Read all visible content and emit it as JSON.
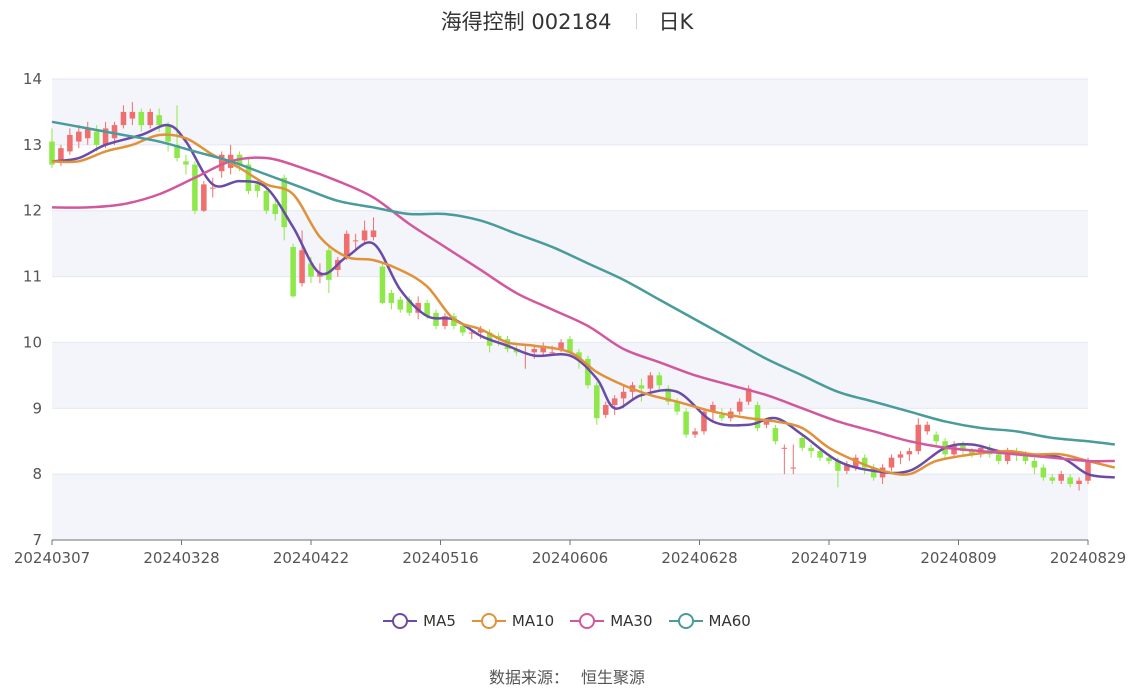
{
  "header": {
    "title": "海得控制 002184",
    "period": "日K"
  },
  "source": {
    "label": "数据来源：",
    "value": "恒生聚源"
  },
  "colors": {
    "up": "#ef6f6f",
    "down": "#8ee84a",
    "MA5": "#6a4ba8",
    "MA10": "#e0923a",
    "MA30": "#d2589e",
    "MA60": "#4a9b9b",
    "grid": "#e3e7f0",
    "band": "#f3f5fa"
  },
  "chart_data": {
    "type": "candlestick",
    "ylim": [
      7,
      14
    ],
    "yticks": [
      7,
      8,
      9,
      10,
      11,
      12,
      13,
      14
    ],
    "x_tick_labels": [
      "20240307",
      "20240328",
      "20240422",
      "20240516",
      "20240606",
      "20240628",
      "20240719",
      "20240809",
      "20240829"
    ],
    "legend_position": "bottom",
    "candles": [
      [
        13.05,
        12.7,
        13.25,
        12.65
      ],
      [
        12.75,
        12.95,
        13.0,
        12.68
      ],
      [
        12.9,
        13.15,
        13.25,
        12.85
      ],
      [
        13.05,
        13.2,
        13.3,
        12.95
      ],
      [
        13.1,
        13.25,
        13.35,
        13.0
      ],
      [
        13.2,
        13.0,
        13.3,
        12.9
      ],
      [
        13.0,
        13.25,
        13.35,
        12.95
      ],
      [
        13.1,
        13.3,
        13.35,
        13.0
      ],
      [
        13.3,
        13.5,
        13.6,
        13.25
      ],
      [
        13.4,
        13.5,
        13.65,
        13.3
      ],
      [
        13.5,
        13.3,
        13.55,
        13.2
      ],
      [
        13.3,
        13.5,
        13.55,
        13.25
      ],
      [
        13.45,
        13.3,
        13.55,
        13.2
      ],
      [
        13.3,
        13.05,
        13.35,
        12.9
      ],
      [
        13.0,
        12.8,
        13.6,
        12.75
      ],
      [
        12.75,
        12.7,
        12.85,
        12.55
      ],
      [
        12.7,
        12.0,
        12.75,
        11.95
      ],
      [
        12.0,
        12.4,
        12.45,
        11.98
      ],
      [
        12.35,
        12.35,
        12.5,
        12.2
      ],
      [
        12.6,
        12.85,
        12.9,
        12.5
      ],
      [
        12.65,
        12.85,
        13.0,
        12.55
      ],
      [
        12.85,
        12.7,
        12.9,
        12.6
      ],
      [
        12.7,
        12.3,
        12.8,
        12.25
      ],
      [
        12.4,
        12.3,
        12.5,
        12.2
      ],
      [
        12.3,
        12.0,
        12.35,
        11.95
      ],
      [
        12.1,
        11.95,
        12.2,
        11.85
      ],
      [
        12.5,
        11.75,
        12.55,
        11.55
      ],
      [
        11.45,
        10.7,
        11.5,
        10.68
      ],
      [
        10.9,
        11.4,
        11.7,
        10.85
      ],
      [
        11.2,
        11.0,
        11.3,
        10.9
      ],
      [
        11.0,
        11.05,
        11.2,
        10.9
      ],
      [
        11.4,
        10.95,
        11.45,
        10.75
      ],
      [
        11.1,
        11.25,
        11.3,
        11.0
      ],
      [
        11.3,
        11.65,
        11.7,
        11.25
      ],
      [
        11.55,
        11.55,
        11.65,
        11.4
      ],
      [
        11.55,
        11.7,
        11.85,
        11.5
      ],
      [
        11.6,
        11.7,
        11.9,
        11.55
      ],
      [
        11.15,
        10.6,
        11.2,
        10.58
      ],
      [
        10.75,
        10.6,
        10.8,
        10.5
      ],
      [
        10.65,
        10.5,
        10.7,
        10.45
      ],
      [
        10.65,
        10.45,
        10.7,
        10.4
      ],
      [
        10.45,
        10.6,
        10.7,
        10.35
      ],
      [
        10.6,
        10.4,
        10.65,
        10.35
      ],
      [
        10.45,
        10.25,
        10.5,
        10.2
      ],
      [
        10.25,
        10.4,
        10.45,
        10.2
      ],
      [
        10.4,
        10.25,
        10.45,
        10.2
      ],
      [
        10.25,
        10.15,
        10.3,
        10.1
      ],
      [
        10.15,
        10.15,
        10.2,
        10.05
      ],
      [
        10.15,
        10.2,
        10.25,
        10.05
      ],
      [
        10.15,
        9.95,
        10.2,
        9.85
      ],
      [
        10.1,
        10.05,
        10.15,
        9.95
      ],
      [
        10.05,
        9.9,
        10.1,
        9.85
      ],
      [
        9.9,
        9.85,
        9.95,
        9.8
      ],
      [
        9.85,
        9.85,
        9.95,
        9.6
      ],
      [
        9.85,
        9.9,
        9.95,
        9.75
      ],
      [
        9.85,
        9.95,
        10.0,
        9.8
      ],
      [
        9.85,
        9.85,
        9.95,
        9.8
      ],
      [
        9.9,
        10.0,
        10.05,
        9.85
      ],
      [
        10.05,
        9.85,
        10.1,
        9.8
      ],
      [
        9.85,
        9.75,
        9.9,
        9.6
      ],
      [
        9.75,
        9.35,
        9.8,
        9.3
      ],
      [
        9.35,
        8.85,
        9.4,
        8.75
      ],
      [
        8.9,
        9.05,
        9.1,
        8.85
      ],
      [
        9.05,
        9.15,
        9.2,
        8.9
      ],
      [
        9.15,
        9.25,
        9.35,
        9.0
      ],
      [
        9.25,
        9.35,
        9.4,
        9.15
      ],
      [
        9.35,
        9.3,
        9.45,
        9.1
      ],
      [
        9.3,
        9.5,
        9.55,
        9.2
      ],
      [
        9.5,
        9.35,
        9.55,
        9.25
      ],
      [
        9.3,
        9.1,
        9.35,
        9.05
      ],
      [
        9.1,
        8.95,
        9.15,
        8.9
      ],
      [
        8.95,
        8.6,
        9.0,
        8.55
      ],
      [
        8.6,
        8.65,
        8.7,
        8.55
      ],
      [
        8.65,
        8.95,
        9.0,
        8.6
      ],
      [
        8.95,
        9.05,
        9.1,
        8.8
      ],
      [
        8.9,
        8.85,
        9.0,
        8.8
      ],
      [
        8.85,
        8.95,
        9.0,
        8.8
      ],
      [
        8.95,
        9.1,
        9.15,
        8.9
      ],
      [
        9.1,
        9.3,
        9.35,
        9.05
      ],
      [
        9.05,
        8.7,
        9.1,
        8.65
      ],
      [
        8.75,
        8.8,
        8.85,
        8.7
      ],
      [
        8.7,
        8.5,
        8.75,
        8.45
      ],
      [
        8.4,
        8.4,
        8.45,
        8.0
      ],
      [
        8.1,
        8.1,
        8.45,
        8.0
      ],
      [
        8.55,
        8.4,
        8.6,
        8.35
      ],
      [
        8.4,
        8.35,
        8.45,
        8.25
      ],
      [
        8.35,
        8.25,
        8.4,
        8.2
      ],
      [
        8.25,
        8.2,
        8.3,
        8.15
      ],
      [
        8.2,
        8.05,
        8.25,
        7.8
      ],
      [
        8.05,
        8.15,
        8.2,
        8.0
      ],
      [
        8.1,
        8.25,
        8.3,
        8.05
      ],
      [
        8.25,
        8.1,
        8.3,
        8.0
      ],
      [
        8.1,
        7.95,
        8.15,
        7.9
      ],
      [
        7.95,
        8.1,
        8.15,
        7.85
      ],
      [
        8.1,
        8.25,
        8.3,
        8.05
      ],
      [
        8.25,
        8.3,
        8.35,
        8.15
      ],
      [
        8.3,
        8.35,
        8.4,
        8.2
      ],
      [
        8.35,
        8.75,
        8.85,
        8.3
      ],
      [
        8.65,
        8.75,
        8.8,
        8.6
      ],
      [
        8.6,
        8.5,
        8.65,
        8.4
      ],
      [
        8.5,
        8.3,
        8.55,
        8.25
      ],
      [
        8.3,
        8.45,
        8.5,
        8.25
      ],
      [
        8.45,
        8.35,
        8.5,
        8.3
      ],
      [
        8.35,
        8.3,
        8.4,
        8.25
      ],
      [
        8.3,
        8.4,
        8.45,
        8.25
      ],
      [
        8.4,
        8.3,
        8.45,
        8.25
      ],
      [
        8.3,
        8.2,
        8.35,
        8.15
      ],
      [
        8.2,
        8.35,
        8.4,
        8.15
      ],
      [
        8.35,
        8.3,
        8.4,
        8.2
      ],
      [
        8.3,
        8.2,
        8.35,
        8.15
      ],
      [
        8.2,
        8.1,
        8.25,
        8.0
      ],
      [
        8.1,
        7.95,
        8.15,
        7.9
      ],
      [
        7.95,
        7.9,
        8.0,
        7.85
      ],
      [
        7.9,
        8.0,
        8.05,
        7.85
      ],
      [
        7.95,
        7.85,
        8.0,
        7.8
      ],
      [
        7.85,
        7.9,
        7.95,
        7.75
      ],
      [
        7.9,
        8.2,
        8.25,
        7.85
      ]
    ],
    "series": [
      {
        "name": "MA5",
        "points": [
          [
            0,
            12.75
          ],
          [
            3,
            12.8
          ],
          [
            6,
            13.0
          ],
          [
            10,
            13.15
          ],
          [
            13,
            13.3
          ],
          [
            15,
            13.05
          ],
          [
            18,
            12.4
          ],
          [
            21,
            12.45
          ],
          [
            24,
            12.35
          ],
          [
            27,
            11.75
          ],
          [
            30,
            11.05
          ],
          [
            33,
            11.3
          ],
          [
            36,
            11.5
          ],
          [
            39,
            10.8
          ],
          [
            42,
            10.4
          ],
          [
            45,
            10.35
          ],
          [
            48,
            10.1
          ],
          [
            51,
            9.95
          ],
          [
            54,
            9.8
          ],
          [
            58,
            9.8
          ],
          [
            61,
            9.45
          ],
          [
            63,
            9.0
          ],
          [
            66,
            9.2
          ],
          [
            70,
            9.25
          ],
          [
            74,
            8.8
          ],
          [
            78,
            8.75
          ],
          [
            81,
            8.85
          ],
          [
            84,
            8.6
          ],
          [
            88,
            8.2
          ],
          [
            92,
            8.05
          ],
          [
            96,
            8.05
          ],
          [
            100,
            8.4
          ],
          [
            103,
            8.45
          ],
          [
            106,
            8.35
          ],
          [
            109,
            8.3
          ],
          [
            113,
            8.25
          ],
          [
            116,
            8.0
          ],
          [
            119,
            7.95
          ]
        ]
      },
      {
        "name": "MA10",
        "points": [
          [
            0,
            12.75
          ],
          [
            3,
            12.75
          ],
          [
            6,
            12.9
          ],
          [
            9,
            13.0
          ],
          [
            12,
            13.15
          ],
          [
            15,
            13.1
          ],
          [
            18,
            12.85
          ],
          [
            21,
            12.65
          ],
          [
            24,
            12.4
          ],
          [
            27,
            12.25
          ],
          [
            30,
            11.6
          ],
          [
            33,
            11.3
          ],
          [
            36,
            11.25
          ],
          [
            39,
            11.1
          ],
          [
            42,
            10.85
          ],
          [
            45,
            10.35
          ],
          [
            48,
            10.2
          ],
          [
            51,
            10.0
          ],
          [
            54,
            9.95
          ],
          [
            58,
            9.85
          ],
          [
            61,
            9.55
          ],
          [
            64,
            9.35
          ],
          [
            67,
            9.2
          ],
          [
            70,
            9.1
          ],
          [
            74,
            8.95
          ],
          [
            78,
            8.85
          ],
          [
            81,
            8.8
          ],
          [
            84,
            8.7
          ],
          [
            87,
            8.4
          ],
          [
            90,
            8.2
          ],
          [
            93,
            8.05
          ],
          [
            96,
            8.0
          ],
          [
            99,
            8.2
          ],
          [
            103,
            8.3
          ],
          [
            107,
            8.35
          ],
          [
            110,
            8.3
          ],
          [
            113,
            8.3
          ],
          [
            116,
            8.2
          ],
          [
            119,
            8.1
          ]
        ]
      },
      {
        "name": "MA30",
        "points": [
          [
            0,
            12.05
          ],
          [
            4,
            12.05
          ],
          [
            8,
            12.1
          ],
          [
            12,
            12.25
          ],
          [
            16,
            12.5
          ],
          [
            20,
            12.75
          ],
          [
            24,
            12.8
          ],
          [
            28,
            12.65
          ],
          [
            32,
            12.45
          ],
          [
            36,
            12.2
          ],
          [
            40,
            11.8
          ],
          [
            44,
            11.45
          ],
          [
            48,
            11.1
          ],
          [
            52,
            10.75
          ],
          [
            56,
            10.5
          ],
          [
            60,
            10.25
          ],
          [
            64,
            9.9
          ],
          [
            68,
            9.7
          ],
          [
            72,
            9.5
          ],
          [
            76,
            9.35
          ],
          [
            80,
            9.2
          ],
          [
            84,
            9.0
          ],
          [
            88,
            8.8
          ],
          [
            92,
            8.65
          ],
          [
            96,
            8.5
          ],
          [
            100,
            8.4
          ],
          [
            104,
            8.35
          ],
          [
            108,
            8.3
          ],
          [
            112,
            8.25
          ],
          [
            116,
            8.2
          ],
          [
            119,
            8.2
          ]
        ]
      },
      {
        "name": "MA60",
        "points": [
          [
            0,
            13.35
          ],
          [
            4,
            13.25
          ],
          [
            8,
            13.15
          ],
          [
            12,
            13.05
          ],
          [
            16,
            12.9
          ],
          [
            20,
            12.75
          ],
          [
            24,
            12.55
          ],
          [
            28,
            12.35
          ],
          [
            32,
            12.15
          ],
          [
            36,
            12.05
          ],
          [
            40,
            11.95
          ],
          [
            44,
            11.95
          ],
          [
            48,
            11.85
          ],
          [
            52,
            11.65
          ],
          [
            56,
            11.45
          ],
          [
            60,
            11.2
          ],
          [
            64,
            10.95
          ],
          [
            68,
            10.65
          ],
          [
            72,
            10.35
          ],
          [
            76,
            10.05
          ],
          [
            80,
            9.75
          ],
          [
            84,
            9.5
          ],
          [
            88,
            9.25
          ],
          [
            92,
            9.1
          ],
          [
            96,
            8.95
          ],
          [
            100,
            8.8
          ],
          [
            104,
            8.7
          ],
          [
            108,
            8.65
          ],
          [
            112,
            8.55
          ],
          [
            116,
            8.5
          ],
          [
            119,
            8.45
          ]
        ]
      }
    ]
  }
}
